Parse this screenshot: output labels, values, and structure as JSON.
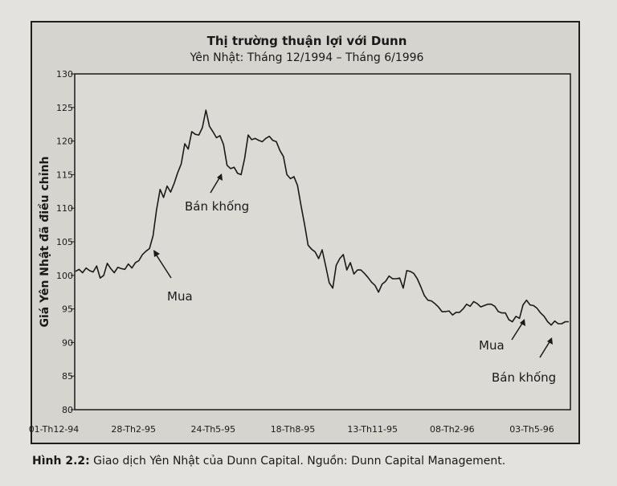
{
  "chart_data": {
    "type": "line",
    "title": "Thị trường thuận lợi với Dunn",
    "subtitle": "Yên Nhật: Tháng 12/1994 – Tháng 6/1996",
    "xlabel": "",
    "ylabel": "Giá Yên Nhật đã điều chỉnh",
    "ylim": [
      80,
      130
    ],
    "yticks": [
      80,
      85,
      90,
      95,
      100,
      105,
      110,
      115,
      120,
      125,
      130
    ],
    "xticks": [
      "01-Th12-94",
      "28-Th2-95",
      "24-Th5-95",
      "18-Th8-95",
      "13-Th11-95",
      "08-Th2-96",
      "03-Th5-96"
    ],
    "grid": false,
    "series": [
      {
        "values": [
          100.6,
          100.9,
          100.4,
          101.1,
          100.7,
          100.5,
          101.4,
          99.6,
          100.0,
          101.8,
          101.0,
          100.4,
          101.2,
          101.0,
          100.9,
          101.7,
          101.1,
          101.9,
          102.2,
          103.1,
          103.6,
          104.0,
          105.9,
          109.8,
          112.8,
          111.6,
          113.3,
          112.4,
          113.7,
          115.3,
          116.6,
          119.6,
          118.8,
          121.4,
          121.0,
          120.9,
          122.0,
          124.6,
          122.2,
          121.4,
          120.5,
          120.8,
          119.5,
          116.4,
          115.9,
          116.1,
          115.2,
          115.0,
          117.4,
          120.9,
          120.2,
          120.4,
          120.1,
          119.9,
          120.4,
          120.7,
          120.1,
          119.9,
          118.6,
          117.7,
          115.0,
          114.4,
          114.7,
          113.4,
          110.4,
          107.6,
          104.5,
          103.9,
          103.5,
          102.5,
          103.8,
          101.4,
          98.9,
          98.1,
          101.5,
          102.5,
          103.1,
          100.8,
          101.9,
          100.2,
          100.8,
          100.8,
          100.3,
          99.7,
          99.0,
          98.5,
          97.5,
          98.7,
          99.1,
          99.9,
          99.5,
          99.5,
          99.6,
          98.1,
          100.7,
          100.6,
          100.3,
          99.5,
          98.3,
          97.0,
          96.3,
          96.2,
          95.8,
          95.3,
          94.6,
          94.6,
          94.7,
          94.1,
          94.5,
          94.5,
          95.0,
          95.7,
          95.4,
          96.1,
          95.8,
          95.3,
          95.5,
          95.7,
          95.7,
          95.4,
          94.6,
          94.4,
          94.4,
          93.4,
          93.1,
          93.9,
          93.6,
          95.6,
          96.3,
          95.6,
          95.5,
          95.1,
          94.4,
          93.9,
          93.1,
          92.6,
          93.2,
          92.8,
          92.8,
          93.1,
          93.1
        ]
      }
    ],
    "annotations": [
      {
        "text": "Mua"
      },
      {
        "text": "Bán khống"
      },
      {
        "text": "Mua"
      },
      {
        "text": "Bán khống"
      }
    ]
  },
  "caption": {
    "label": "Hình 2.2:",
    "text": " Giao dịch Yên Nhật của Dunn Capital. Nguồn: Dunn Capital Management."
  }
}
